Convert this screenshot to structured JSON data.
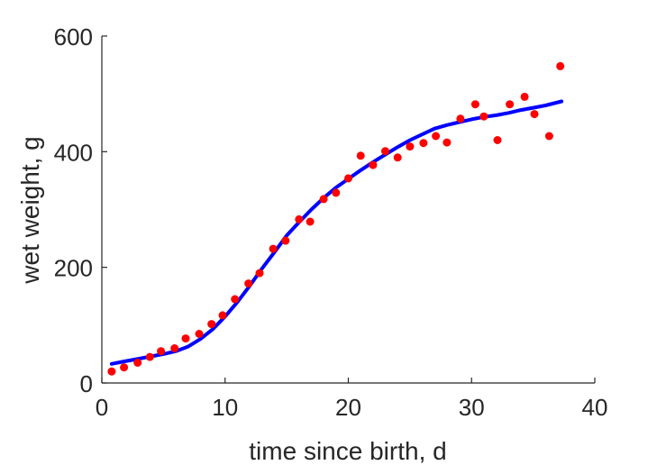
{
  "chart_data": {
    "type": "scatter",
    "title": "",
    "xlabel": "time since birth, d",
    "ylabel": "wet weight, g",
    "xlim": [
      0,
      40
    ],
    "ylim": [
      0,
      600
    ],
    "xticks": [
      0,
      10,
      20,
      30,
      40
    ],
    "yticks": [
      0,
      200,
      400,
      600
    ],
    "grid": false,
    "series": [
      {
        "kind": "points",
        "color": "#ff0000",
        "x": [
          0.8,
          1.8,
          2.9,
          3.9,
          4.8,
          5.9,
          6.8,
          7.9,
          8.9,
          9.8,
          10.8,
          11.9,
          12.8,
          13.9,
          14.9,
          16.0,
          16.9,
          18.0,
          19.0,
          20.0,
          21.0,
          22.0,
          23.0,
          24.0,
          25.0,
          26.1,
          27.1,
          28.0,
          29.1,
          30.3,
          31.0,
          32.1,
          33.1,
          34.3,
          35.1,
          36.3,
          37.2
        ],
        "y": [
          20,
          27,
          35,
          45,
          55,
          60,
          77,
          85,
          102,
          117,
          145,
          172,
          190,
          232,
          246,
          283,
          279,
          318,
          329,
          354,
          393,
          377,
          401,
          390,
          409,
          415,
          427,
          416,
          457,
          482,
          461,
          420,
          482,
          495,
          465,
          427,
          548
        ]
      },
      {
        "kind": "line",
        "color": "#0000ff",
        "x": [
          0.8,
          2,
          3,
          4,
          5,
          6,
          7,
          8,
          9,
          10,
          11,
          12,
          13,
          14,
          15,
          16,
          17,
          18,
          19,
          20,
          21,
          22,
          23,
          24,
          25,
          26,
          27,
          28,
          29,
          30,
          31,
          32,
          33,
          34,
          35,
          36,
          37.3
        ],
        "y": [
          33,
          38,
          42,
          46,
          50,
          55,
          63,
          76,
          93,
          115,
          140,
          168,
          198,
          226,
          255,
          278,
          300,
          320,
          338,
          353,
          368,
          382,
          395,
          408,
          420,
          430,
          440,
          446,
          451,
          456,
          460,
          463,
          467,
          472,
          476,
          480,
          487
        ]
      }
    ]
  }
}
